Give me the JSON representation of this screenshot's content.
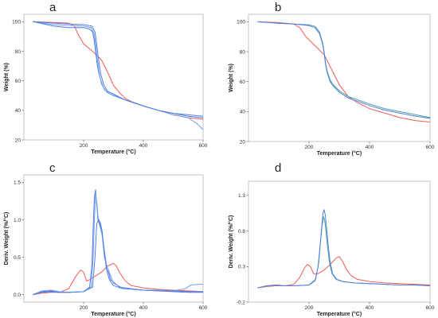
{
  "colors": {
    "red": "#f05a5a",
    "blue1": "#4f7fe6",
    "blue2": "#6f9df0",
    "green": "#4aa39a",
    "frame": "#b8b8b8"
  },
  "chart_data": [
    {
      "panel": "a",
      "type": "line",
      "xlabel": "Temperature (°C)",
      "ylabel": "Weight (%)",
      "xlim": [
        0,
        600
      ],
      "ylim": [
        20,
        105
      ],
      "xticks": [
        200,
        400,
        600
      ],
      "yticks": [
        20,
        40,
        60,
        80,
        100
      ],
      "xtick_labels": [
        "200",
        "400",
        "600"
      ],
      "ytick_labels": [
        "20",
        "40",
        "60",
        "80",
        "100"
      ],
      "series": [
        {
          "color": "red",
          "x": [
            30,
            100,
            150,
            170,
            180,
            200,
            230,
            260,
            280,
            300,
            320,
            340,
            360,
            400,
            450,
            500,
            550,
            600
          ],
          "values": [
            100,
            99.5,
            99,
            97,
            92,
            85,
            80,
            74,
            66,
            57,
            52,
            48,
            46,
            43,
            40,
            37,
            35,
            34
          ]
        },
        {
          "color": "blue1",
          "x": [
            30,
            100,
            150,
            200,
            220,
            230,
            235,
            240,
            245,
            250,
            260,
            270,
            280,
            300,
            340,
            400,
            450,
            500,
            550,
            600
          ],
          "values": [
            100,
            97,
            96,
            96,
            95,
            93,
            88,
            80,
            72,
            66,
            58,
            54,
            52,
            50,
            47,
            43,
            40,
            38,
            36,
            35
          ]
        },
        {
          "color": "blue2",
          "x": [
            30,
            100,
            150,
            200,
            225,
            235,
            240,
            245,
            250,
            255,
            265,
            275,
            290,
            340,
            400,
            450,
            500,
            550,
            580,
            600
          ],
          "values": [
            100,
            98,
            97.5,
            97,
            96,
            92,
            85,
            76,
            68,
            62,
            56,
            53,
            51,
            47,
            43,
            40,
            37,
            35,
            31,
            27
          ]
        },
        {
          "color": "blue1",
          "x": [
            30,
            100,
            150,
            200,
            228,
            238,
            243,
            248,
            253,
            258,
            268,
            280,
            300,
            340,
            400,
            450,
            500,
            550,
            600
          ],
          "values": [
            100,
            99,
            98.5,
            98,
            97,
            93,
            86,
            78,
            70,
            64,
            57,
            53,
            51,
            47,
            43,
            40,
            38,
            37,
            36
          ]
        }
      ]
    },
    {
      "panel": "b",
      "type": "line",
      "xlabel": "Temperature (°C)",
      "ylabel": "Weight (%)",
      "xlim": [
        0,
        600
      ],
      "ylim": [
        20,
        105
      ],
      "xticks": [
        200,
        400,
        600
      ],
      "yticks": [
        20,
        40,
        60,
        80,
        100
      ],
      "xtick_labels": [
        "200",
        "400",
        "600"
      ],
      "ytick_labels": [
        "20",
        "40",
        "60",
        "80",
        "100"
      ],
      "series": [
        {
          "color": "red",
          "x": [
            30,
            100,
            150,
            170,
            190,
            210,
            230,
            250,
            270,
            300,
            330,
            360,
            400,
            450,
            500,
            550,
            600
          ],
          "values": [
            100,
            99.5,
            98.5,
            96,
            90,
            86,
            82,
            78,
            70,
            58,
            50,
            46,
            42,
            39,
            36,
            34,
            33
          ]
        },
        {
          "color": "green",
          "x": [
            30,
            100,
            150,
            200,
            220,
            235,
            245,
            250,
            255,
            260,
            270,
            280,
            300,
            330,
            360,
            400,
            450,
            500,
            550,
            600
          ],
          "values": [
            100,
            99,
            98.5,
            98,
            97,
            93,
            86,
            80,
            72,
            67,
            61,
            58,
            54,
            50,
            48,
            45,
            42,
            40,
            38,
            36
          ]
        },
        {
          "color": "blue1",
          "x": [
            30,
            100,
            150,
            200,
            220,
            235,
            245,
            250,
            255,
            260,
            270,
            280,
            300,
            330,
            360,
            400,
            450,
            500,
            550,
            600
          ],
          "values": [
            100,
            99,
            98.5,
            97.5,
            96,
            92,
            85,
            79,
            71,
            66,
            60,
            57,
            53,
            49,
            47,
            44,
            41,
            39,
            37,
            35.5
          ]
        }
      ]
    },
    {
      "panel": "c",
      "type": "line",
      "xlabel": "Temperature (°C)",
      "ylabel": "Deriv. Weight (%/°C)",
      "xlim": [
        0,
        600
      ],
      "ylim": [
        -0.1,
        1.6
      ],
      "xticks": [
        200,
        400,
        600
      ],
      "yticks": [
        0,
        0.5,
        1.0,
        1.5
      ],
      "xtick_labels": [
        "200",
        "400",
        "600"
      ],
      "ytick_labels": [
        "0.0",
        "0.5",
        "1.0",
        "1.5"
      ],
      "series": [
        {
          "color": "red",
          "x": [
            30,
            60,
            90,
            120,
            150,
            175,
            190,
            200,
            210,
            220,
            240,
            260,
            280,
            300,
            310,
            320,
            340,
            360,
            400,
            450,
            500,
            550,
            600
          ],
          "values": [
            0,
            0.02,
            0.03,
            0.03,
            0.08,
            0.25,
            0.33,
            0.3,
            0.18,
            0.2,
            0.25,
            0.3,
            0.38,
            0.42,
            0.38,
            0.3,
            0.18,
            0.12,
            0.09,
            0.07,
            0.06,
            0.05,
            0.04
          ]
        },
        {
          "color": "blue1",
          "x": [
            30,
            60,
            90,
            120,
            150,
            200,
            220,
            228,
            232,
            236,
            240,
            244,
            248,
            252,
            256,
            262,
            270,
            290,
            320,
            360,
            400,
            450,
            500,
            550,
            600
          ],
          "values": [
            0,
            0.04,
            0.05,
            0.03,
            0.03,
            0.04,
            0.1,
            0.4,
            0.9,
            1.3,
            1.4,
            1.2,
            1.0,
            0.95,
            0.9,
            0.8,
            0.5,
            0.2,
            0.1,
            0.08,
            0.06,
            0.05,
            0.04,
            0.03,
            0.03
          ]
        },
        {
          "color": "blue2",
          "x": [
            30,
            60,
            90,
            120,
            150,
            200,
            225,
            232,
            236,
            240,
            244,
            248,
            252,
            258,
            266,
            276,
            300,
            330,
            370,
            400,
            450,
            500,
            540,
            560,
            600
          ],
          "values": [
            0,
            0.05,
            0.06,
            0.04,
            0.03,
            0.04,
            0.1,
            0.5,
            1.0,
            1.35,
            1.25,
            1.05,
            0.98,
            0.9,
            0.7,
            0.4,
            0.15,
            0.09,
            0.07,
            0.06,
            0.06,
            0.05,
            0.08,
            0.13,
            0.14
          ]
        },
        {
          "color": "blue1",
          "x": [
            30,
            60,
            90,
            120,
            150,
            200,
            230,
            238,
            244,
            250,
            256,
            262,
            268,
            276,
            286,
            300,
            330,
            370,
            400,
            450,
            500,
            550,
            600
          ],
          "values": [
            0,
            0.03,
            0.04,
            0.03,
            0.03,
            0.04,
            0.1,
            0.5,
            0.95,
            1.0,
            0.96,
            0.85,
            0.6,
            0.35,
            0.2,
            0.12,
            0.08,
            0.07,
            0.06,
            0.05,
            0.05,
            0.04,
            0.04
          ]
        }
      ]
    },
    {
      "panel": "d",
      "type": "line",
      "xlabel": "Temperature (°C)",
      "ylabel": "Deriv. Weight (%/°C)",
      "xlim": [
        0,
        600
      ],
      "ylim": [
        -0.2,
        1.5
      ],
      "xticks": [
        200,
        400,
        600
      ],
      "yticks": [
        -0.2,
        0.3,
        0.8,
        1.3
      ],
      "xtick_labels": [
        "200",
        "400",
        "600"
      ],
      "ytick_labels": [
        "-0.2",
        "0.3",
        "0.8",
        "1.3"
      ],
      "series": [
        {
          "color": "red",
          "x": [
            30,
            60,
            90,
            120,
            150,
            170,
            185,
            195,
            205,
            215,
            230,
            250,
            270,
            290,
            300,
            310,
            325,
            340,
            360,
            400,
            450,
            500,
            550,
            600
          ],
          "values": [
            0,
            0.02,
            0.03,
            0.03,
            0.05,
            0.15,
            0.28,
            0.33,
            0.3,
            0.2,
            0.2,
            0.25,
            0.33,
            0.42,
            0.44,
            0.38,
            0.25,
            0.17,
            0.12,
            0.09,
            0.07,
            0.06,
            0.05,
            0.04
          ]
        },
        {
          "color": "green",
          "x": [
            30,
            60,
            90,
            120,
            150,
            200,
            220,
            230,
            238,
            244,
            248,
            252,
            256,
            262,
            268,
            276,
            290,
            310,
            350,
            400,
            450,
            500,
            550,
            600
          ],
          "values": [
            0,
            0.03,
            0.04,
            0.03,
            0.03,
            0.04,
            0.1,
            0.3,
            0.65,
            0.9,
            1.0,
            0.95,
            0.8,
            0.55,
            0.35,
            0.2,
            0.12,
            0.09,
            0.07,
            0.06,
            0.05,
            0.04,
            0.04,
            0.03
          ]
        },
        {
          "color": "blue1",
          "x": [
            30,
            60,
            90,
            120,
            150,
            200,
            222,
            232,
            240,
            246,
            250,
            254,
            258,
            264,
            270,
            278,
            292,
            312,
            350,
            400,
            450,
            500,
            550,
            600
          ],
          "values": [
            0,
            0.03,
            0.04,
            0.03,
            0.03,
            0.04,
            0.12,
            0.35,
            0.75,
            1.05,
            1.1,
            1.02,
            0.85,
            0.58,
            0.36,
            0.2,
            0.12,
            0.09,
            0.07,
            0.06,
            0.05,
            0.04,
            0.04,
            0.03
          ]
        }
      ]
    }
  ]
}
